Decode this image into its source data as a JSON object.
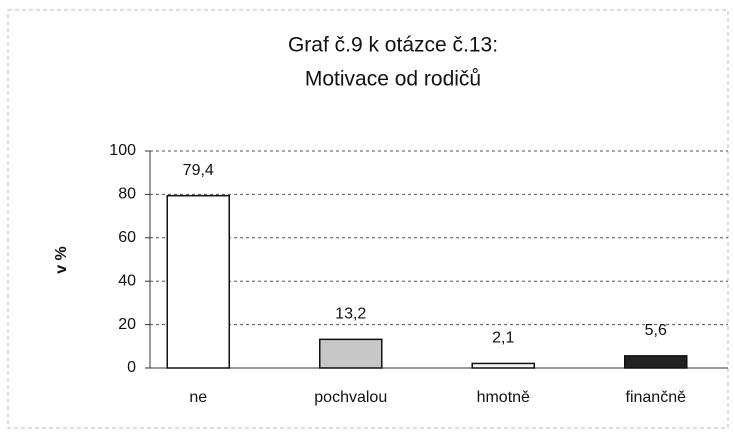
{
  "chart_data": {
    "type": "bar",
    "title": [
      "Graf č.9 k otázce č.13:",
      "Motivace od rodičů"
    ],
    "y_label": "v %",
    "categories": [
      "ne",
      "pochvalou",
      "hmotně",
      "finančně"
    ],
    "values": [
      79.4,
      13.2,
      2.1,
      5.6
    ],
    "value_labels": [
      "79,4",
      "13,2",
      "2,1",
      "5,6"
    ],
    "colors": [
      "#ffffff",
      "#c8c8c8",
      "#f4f4f4",
      "#222222"
    ],
    "ylim": [
      0,
      100
    ],
    "yticks": [
      0,
      20,
      40,
      60,
      80,
      100
    ],
    "grid": true
  }
}
